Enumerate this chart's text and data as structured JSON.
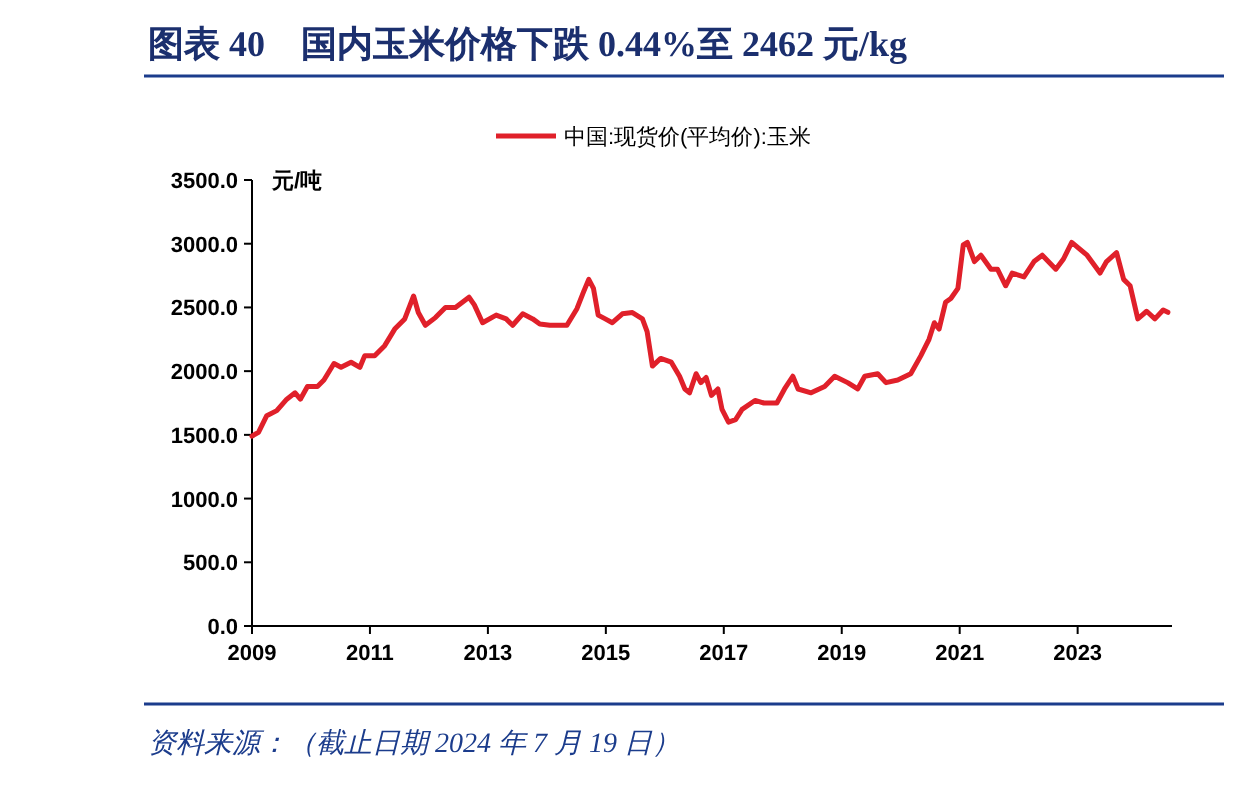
{
  "chart_data": {
    "type": "line",
    "title": "图表 40　国内玉米价格下跌 0.44%至 2462 元/kg",
    "ylabel": "元/吨",
    "annotations": [
      "资料来源：（截止日期 2024 年 7 月 19 日）"
    ],
    "legend": "top",
    "xlim": [
      2009,
      2024.6
    ],
    "xticks": [
      2009,
      2011,
      2013,
      2015,
      2017,
      2019,
      2021,
      2023
    ],
    "ylim": [
      0,
      3500
    ],
    "yticks": [
      {
        "value": 0,
        "label": "0.0"
      },
      {
        "value": 500,
        "label": "500.0"
      },
      {
        "value": 1000,
        "label": "1000.0"
      },
      {
        "value": 1500,
        "label": "1500.0"
      },
      {
        "value": 2000,
        "label": "2000.0"
      },
      {
        "value": 2500,
        "label": "2500.0"
      },
      {
        "value": 3000,
        "label": "3000.0"
      },
      {
        "value": 3500,
        "label": "3500.0"
      }
    ],
    "series": [
      {
        "name": "中国:现货价(平均价):玉米",
        "color": "#e0202a",
        "x": [
          2009.0,
          2009.11,
          2009.25,
          2009.42,
          2009.59,
          2009.73,
          2009.82,
          2009.94,
          2010.11,
          2010.22,
          2010.39,
          2010.51,
          2010.68,
          2010.83,
          2010.91,
          2011.08,
          2011.25,
          2011.42,
          2011.59,
          2011.74,
          2011.82,
          2011.94,
          2012.11,
          2012.28,
          2012.45,
          2012.68,
          2012.77,
          2012.91,
          2013.14,
          2013.31,
          2013.42,
          2013.59,
          2013.76,
          2013.88,
          2014.05,
          2014.34,
          2014.51,
          2014.62,
          2014.71,
          2014.79,
          2014.87,
          2014.99,
          2015.11,
          2015.28,
          2015.45,
          2015.62,
          2015.7,
          2015.79,
          2015.93,
          2016.11,
          2016.25,
          2016.34,
          2016.42,
          2016.53,
          2016.61,
          2016.7,
          2016.79,
          2016.9,
          2016.97,
          2017.08,
          2017.2,
          2017.31,
          2017.53,
          2017.68,
          2017.9,
          2018.03,
          2018.17,
          2018.26,
          2018.48,
          2018.71,
          2018.88,
          2019.1,
          2019.27,
          2019.39,
          2019.61,
          2019.75,
          2019.95,
          2020.17,
          2020.34,
          2020.48,
          2020.57,
          2020.65,
          2020.76,
          2020.85,
          2020.97,
          2021.06,
          2021.13,
          2021.25,
          2021.36,
          2021.53,
          2021.64,
          2021.78,
          2021.89,
          2022.09,
          2022.26,
          2022.4,
          2022.63,
          2022.76,
          2022.9,
          2023.16,
          2023.38,
          2023.49,
          2023.66,
          2023.78,
          2023.89,
          2024.02,
          2024.17,
          2024.31,
          2024.45,
          2024.53
        ],
        "values": [
          1490,
          1520,
          1650,
          1690,
          1780,
          1830,
          1780,
          1880,
          1880,
          1930,
          2060,
          2030,
          2070,
          2030,
          2120,
          2120,
          2200,
          2330,
          2410,
          2590,
          2460,
          2360,
          2420,
          2500,
          2500,
          2580,
          2520,
          2380,
          2440,
          2410,
          2360,
          2450,
          2410,
          2370,
          2360,
          2360,
          2490,
          2620,
          2720,
          2650,
          2440,
          2410,
          2380,
          2450,
          2460,
          2410,
          2310,
          2040,
          2100,
          2070,
          1960,
          1860,
          1830,
          1980,
          1910,
          1950,
          1810,
          1860,
          1700,
          1600,
          1620,
          1700,
          1770,
          1750,
          1750,
          1860,
          1960,
          1860,
          1830,
          1880,
          1960,
          1910,
          1860,
          1960,
          1980,
          1910,
          1930,
          1980,
          2120,
          2250,
          2380,
          2330,
          2540,
          2570,
          2650,
          2990,
          3010,
          2860,
          2910,
          2800,
          2800,
          2670,
          2770,
          2740,
          2860,
          2910,
          2800,
          2880,
          3010,
          2910,
          2770,
          2860,
          2930,
          2720,
          2670,
          2410,
          2470,
          2410,
          2480,
          2462
        ]
      }
    ]
  }
}
